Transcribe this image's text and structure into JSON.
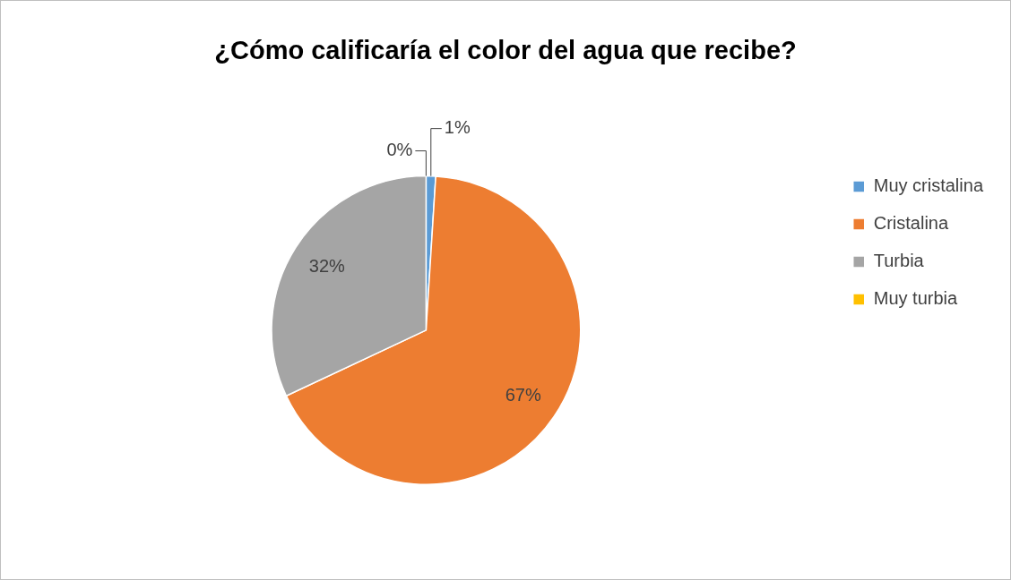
{
  "chart_data": {
    "type": "pie",
    "title": "¿Cómo calificaría el color del agua que recibe?",
    "categories": [
      "Muy cristalina",
      "Cristalina",
      "Turbia",
      "Muy turbia"
    ],
    "values": [
      1,
      67,
      32,
      0
    ],
    "colors": [
      "#5b9bd5",
      "#ed7d31",
      "#a5a5a5",
      "#ffc000"
    ],
    "value_labels": [
      "1%",
      "67%",
      "32%",
      "0%"
    ],
    "legend": "right"
  }
}
